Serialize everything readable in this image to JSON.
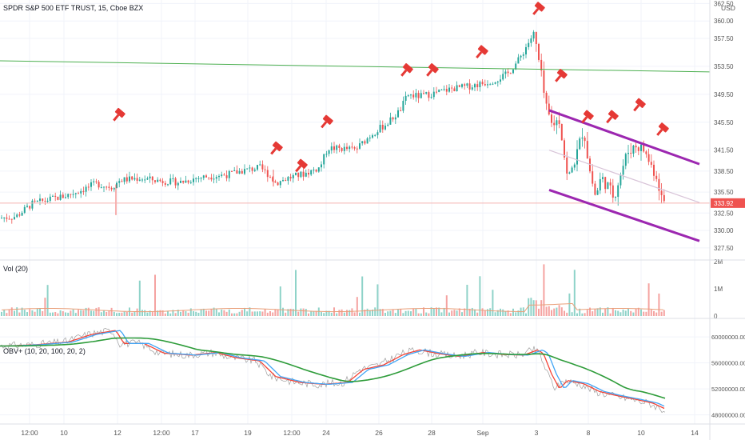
{
  "header": {
    "symbol": "SPDR S&P 500 ETF TRUST, 15, Cboe BZX",
    "currency": "USD"
  },
  "colors": {
    "up": "#26a69a",
    "down": "#ef5350",
    "channel": "#9c27b0",
    "midline": "#d8c4d8",
    "resistance": "#4caf50",
    "obv": "#9e9e9e",
    "obv_fast": "#f44336",
    "obv_mid": "#42a5f5",
    "obv_slow": "#2e9c3a",
    "vol_ma": "#e9a07a",
    "price_tag": "#ef5350",
    "marker": "#e53935"
  },
  "chart_data": [
    {
      "type": "candlestick",
      "name": "price",
      "y_ticks": [
        "362.50",
        "360.00",
        "357.50",
        "353.50",
        "349.50",
        "345.50",
        "341.50",
        "338.50",
        "335.50",
        "332.50",
        "330.00",
        "327.50"
      ],
      "ylim": [
        326,
        363
      ],
      "last_price": "333.92",
      "x_ticks": [
        "12:00",
        "10",
        "12",
        "12:00",
        "17",
        "19",
        "12:00",
        "24",
        "26",
        "28",
        "Sep",
        "3",
        "8",
        "10",
        "14"
      ],
      "price_points": [
        [
          0,
          331.8
        ],
        [
          20,
          332.0
        ],
        [
          40,
          333.8
        ],
        [
          60,
          334.4
        ],
        [
          80,
          334.9
        ],
        [
          100,
          335.7
        ],
        [
          120,
          336.7
        ],
        [
          140,
          336.2
        ],
        [
          150,
          337.2
        ],
        [
          175,
          337.5
        ],
        [
          200,
          337.1
        ],
        [
          225,
          336.9
        ],
        [
          245,
          337.5
        ],
        [
          265,
          337.8
        ],
        [
          285,
          338.0
        ],
        [
          305,
          338.6
        ],
        [
          325,
          339.0
        ],
        [
          335,
          338.1
        ],
        [
          345,
          336.8
        ],
        [
          360,
          337.5
        ],
        [
          380,
          338.1
        ],
        [
          400,
          339.0
        ],
        [
          410,
          341.8
        ],
        [
          430,
          341.7
        ],
        [
          445,
          341.6
        ],
        [
          465,
          343.8
        ],
        [
          485,
          345.4
        ],
        [
          500,
          347.1
        ],
        [
          510,
          349.4
        ],
        [
          525,
          349.2
        ],
        [
          545,
          349.7
        ],
        [
          565,
          350.3
        ],
        [
          585,
          350.6
        ],
        [
          605,
          351.1
        ],
        [
          620,
          351.6
        ],
        [
          635,
          352.4
        ],
        [
          650,
          354.6
        ],
        [
          662,
          357.1
        ],
        [
          668,
          358.2
        ],
        [
          672,
          355.5
        ],
        [
          678,
          351.5
        ],
        [
          683,
          347.5
        ],
        [
          690,
          345.2
        ],
        [
          700,
          345.9
        ],
        [
          710,
          337.2
        ],
        [
          716,
          339.0
        ],
        [
          722,
          341.2
        ],
        [
          730,
          344.7
        ],
        [
          737,
          339.0
        ],
        [
          745,
          334.8
        ],
        [
          752,
          337.6
        ],
        [
          760,
          336.4
        ],
        [
          768,
          334.8
        ],
        [
          776,
          338.0
        ],
        [
          785,
          341.2
        ],
        [
          795,
          342.2
        ],
        [
          805,
          341.6
        ],
        [
          815,
          339.2
        ],
        [
          822,
          337.6
        ],
        [
          828,
          334.5
        ],
        [
          833,
          333.9
        ]
      ],
      "channel_upper": [
        [
          687,
          347.2
        ],
        [
          875,
          339.5
        ]
      ],
      "channel_lower": [
        [
          687,
          335.8
        ],
        [
          875,
          328.5
        ]
      ],
      "channel_mid": [
        [
          687,
          341.5
        ],
        [
          875,
          334.0
        ]
      ],
      "resistance_line": [
        [
          0,
          354.3
        ],
        [
          888,
          352.7
        ]
      ],
      "markers": [
        [
          150,
          346.8
        ],
        [
          347,
          342.0
        ],
        [
          378,
          339.5
        ],
        [
          410,
          345.8
        ],
        [
          510,
          353.2
        ],
        [
          542,
          353.2
        ],
        [
          604,
          355.8
        ],
        [
          675,
          362.0
        ],
        [
          703,
          352.4
        ],
        [
          736,
          346.5
        ],
        [
          767,
          346.5
        ],
        [
          801,
          348.2
        ],
        [
          830,
          344.7
        ]
      ]
    },
    {
      "type": "bar",
      "name": "volume",
      "label": "Vol (20)",
      "y_ticks": [
        "2M",
        "1M",
        "0"
      ],
      "ylim": [
        0,
        2000000
      ]
    },
    {
      "type": "line",
      "name": "obv",
      "label": "OBV+ (10, 20, 100, 20, 2)",
      "y_ticks": [
        "60000000.00",
        "56000000.00",
        "52000000.00",
        "48000000.00"
      ],
      "ylim": [
        46600000,
        62600000
      ],
      "obv_points": [
        [
          0,
          58.6
        ],
        [
          40,
          58.8
        ],
        [
          80,
          59.2
        ],
        [
          110,
          60.4
        ],
        [
          140,
          61.0
        ],
        [
          150,
          59.0
        ],
        [
          175,
          59.0
        ],
        [
          200,
          57.5
        ],
        [
          235,
          57.2
        ],
        [
          265,
          57.6
        ],
        [
          290,
          56.8
        ],
        [
          320,
          56.3
        ],
        [
          340,
          53.9
        ],
        [
          370,
          53.0
        ],
        [
          400,
          52.7
        ],
        [
          430,
          53.0
        ],
        [
          450,
          55.0
        ],
        [
          475,
          55.7
        ],
        [
          500,
          57.3
        ],
        [
          520,
          58.0
        ],
        [
          545,
          57.4
        ],
        [
          570,
          57.0
        ],
        [
          600,
          57.6
        ],
        [
          625,
          57.3
        ],
        [
          650,
          57.2
        ],
        [
          668,
          58.0
        ],
        [
          675,
          57.4
        ],
        [
          685,
          54.3
        ],
        [
          695,
          52.0
        ],
        [
          705,
          53.3
        ],
        [
          725,
          52.8
        ],
        [
          745,
          51.6
        ],
        [
          765,
          51.0
        ],
        [
          790,
          50.4
        ],
        [
          812,
          49.8
        ],
        [
          833,
          48.6
        ]
      ]
    }
  ]
}
